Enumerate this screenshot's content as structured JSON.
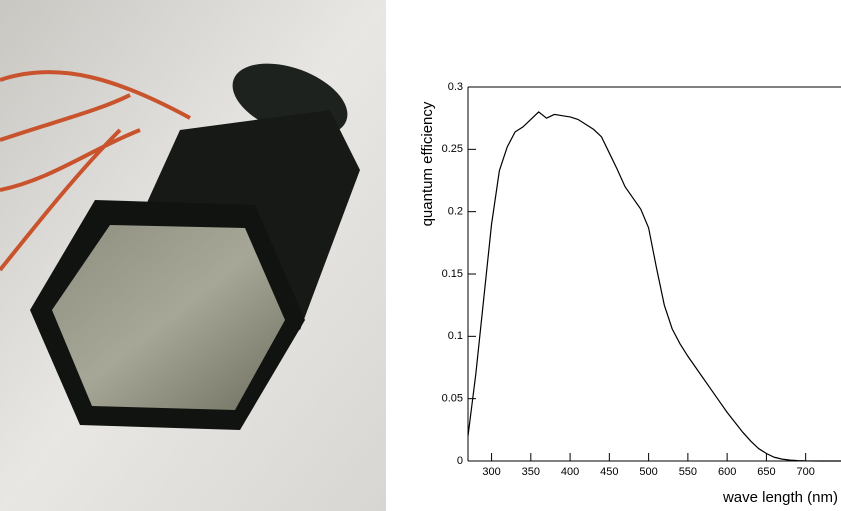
{
  "chart_data": {
    "type": "line",
    "x_label": "wave length (nm)",
    "y_label": "quantum efficiency",
    "x": [
      270,
      280,
      290,
      300,
      310,
      320,
      330,
      340,
      350,
      360,
      370,
      380,
      390,
      400,
      410,
      420,
      430,
      440,
      450,
      460,
      470,
      480,
      490,
      500,
      510,
      520,
      530,
      540,
      550,
      560,
      570,
      580,
      590,
      600,
      610,
      620,
      630,
      640,
      650,
      660,
      670,
      680,
      690,
      700,
      720,
      745
    ],
    "values": [
      0.02,
      0.07,
      0.13,
      0.19,
      0.233,
      0.252,
      0.264,
      0.268,
      0.274,
      0.28,
      0.275,
      0.278,
      0.277,
      0.276,
      0.274,
      0.27,
      0.266,
      0.26,
      0.247,
      0.234,
      0.22,
      0.211,
      0.202,
      0.187,
      0.155,
      0.125,
      0.106,
      0.094,
      0.084,
      0.075,
      0.066,
      0.057,
      0.048,
      0.039,
      0.031,
      0.023,
      0.016,
      0.01,
      0.006,
      0.003,
      0.0015,
      0.0007,
      0.0003,
      0.0001,
      0,
      0
    ],
    "color": "#000000",
    "xlim": [
      270,
      745
    ],
    "xticks": [
      300,
      350,
      400,
      450,
      500,
      550,
      600,
      650,
      700
    ],
    "ylim": [
      0,
      0.3
    ],
    "yticks": [
      0,
      0.05,
      0.1,
      0.15,
      0.2,
      0.25,
      0.3
    ]
  }
}
